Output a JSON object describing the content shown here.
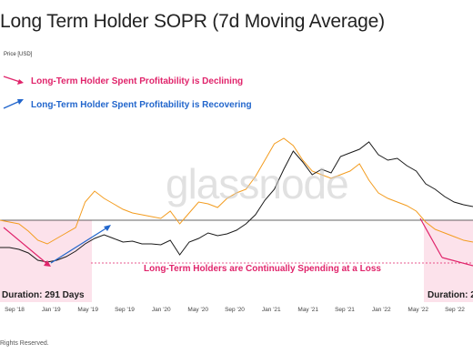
{
  "title": "Long Term Holder SOPR (7d Moving Average)",
  "axis_unit_label": "Price [USD]",
  "legend": {
    "declining": "Long-Term Holder Spent Profitability is Declining",
    "recovering": "Long-Term Holder Spent Profitability is Recovering"
  },
  "annotations": {
    "loss_note": "Long-Term Holders are Continually Spending at a Loss",
    "duration_1": "Duration: 291 Days",
    "duration_2": "Duration: 2"
  },
  "watermark": "glassnode",
  "copyright": "Rights Reserved.",
  "colors": {
    "price": "#1a1a1a",
    "sopr": "#f39c1f",
    "decline": "#e0246b",
    "recover": "#2266cc",
    "zone": "#fbd5e2",
    "baseline": "#333333"
  },
  "chart_data": {
    "type": "line",
    "x_ticks": [
      "Sep '18",
      "Jan '19",
      "May '19",
      "Sep '19",
      "Jan '20",
      "May '20",
      "Sep '20",
      "Jan '21",
      "May '21",
      "Sep '21",
      "Jan '22",
      "May '22",
      "Sep '22"
    ],
    "sopr_baseline": 1,
    "series": [
      {
        "key": "price",
        "x": [
          0,
          0.02,
          0.04,
          0.06,
          0.08,
          0.1,
          0.12,
          0.14,
          0.16,
          0.18,
          0.2,
          0.22,
          0.24,
          0.26,
          0.28,
          0.3,
          0.32,
          0.34,
          0.36,
          0.38,
          0.4,
          0.42,
          0.44,
          0.46,
          0.48,
          0.5,
          0.52,
          0.54,
          0.56,
          0.58,
          0.6,
          0.62,
          0.64,
          0.66,
          0.68,
          0.7,
          0.72,
          0.74,
          0.76,
          0.78,
          0.8,
          0.82,
          0.84,
          0.86,
          0.88,
          0.9,
          0.92,
          0.94,
          0.96,
          0.98,
          1.0
        ],
        "y": [
          0.7,
          0.7,
          0.68,
          0.64,
          0.56,
          0.54,
          0.56,
          0.6,
          0.66,
          0.74,
          0.8,
          0.84,
          0.8,
          0.76,
          0.77,
          0.74,
          0.74,
          0.73,
          0.78,
          0.62,
          0.76,
          0.8,
          0.86,
          0.83,
          0.85,
          0.89,
          0.96,
          1.06,
          1.22,
          1.34,
          1.56,
          1.76,
          1.64,
          1.5,
          1.56,
          1.52,
          1.7,
          1.74,
          1.78,
          1.86,
          1.72,
          1.66,
          1.68,
          1.6,
          1.54,
          1.4,
          1.34,
          1.26,
          1.2,
          1.17,
          1.15
        ]
      },
      {
        "key": "sopr",
        "x": [
          0,
          0.02,
          0.04,
          0.06,
          0.08,
          0.1,
          0.12,
          0.14,
          0.16,
          0.18,
          0.2,
          0.22,
          0.24,
          0.26,
          0.28,
          0.3,
          0.32,
          0.34,
          0.36,
          0.38,
          0.4,
          0.42,
          0.44,
          0.46,
          0.48,
          0.5,
          0.52,
          0.54,
          0.56,
          0.58,
          0.6,
          0.62,
          0.64,
          0.66,
          0.68,
          0.7,
          0.72,
          0.74,
          0.76,
          0.78,
          0.8,
          0.82,
          0.84,
          0.86,
          0.88,
          0.9,
          0.92,
          0.94,
          0.96,
          0.98,
          1.0
        ],
        "y": [
          1.0,
          0.98,
          0.96,
          0.88,
          0.78,
          0.74,
          0.8,
          0.86,
          0.92,
          1.2,
          1.32,
          1.24,
          1.18,
          1.12,
          1.08,
          1.06,
          1.04,
          1.02,
          1.1,
          0.96,
          1.08,
          1.2,
          1.18,
          1.14,
          1.24,
          1.3,
          1.34,
          1.48,
          1.66,
          1.84,
          1.9,
          1.82,
          1.66,
          1.54,
          1.5,
          1.46,
          1.5,
          1.54,
          1.62,
          1.44,
          1.3,
          1.24,
          1.2,
          1.16,
          1.1,
          0.98,
          0.9,
          0.86,
          0.82,
          0.78,
          0.76
        ]
      }
    ]
  }
}
